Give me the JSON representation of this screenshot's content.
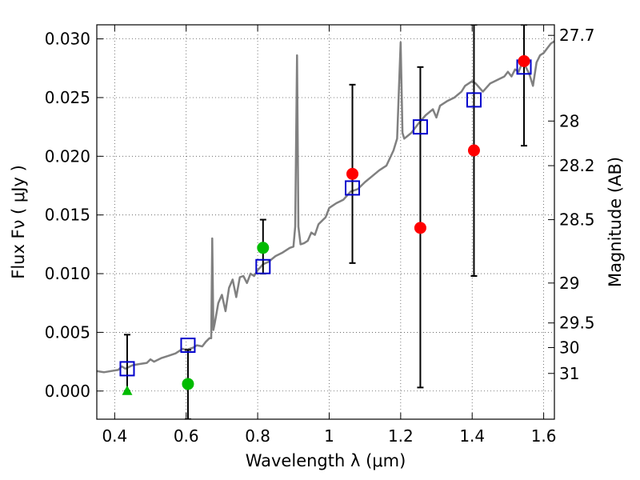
{
  "chart_data": {
    "type": "scatter",
    "xlabel": "Wavelength  λ (μm)",
    "ylabel": "Flux  Fν  ( μJy )",
    "ylabel_right": "Magnitude (AB)",
    "xlim": [
      0.35,
      1.63
    ],
    "ylim": [
      -0.0024,
      0.0312
    ],
    "grid": true,
    "x_ticks": [
      {
        "value": 0.4,
        "label": "0.4"
      },
      {
        "value": 0.6,
        "label": "0.6"
      },
      {
        "value": 0.8,
        "label": "0.8"
      },
      {
        "value": 1.0,
        "label": "1"
      },
      {
        "value": 1.2,
        "label": "1.2"
      },
      {
        "value": 1.4,
        "label": "1.4"
      },
      {
        "value": 1.6,
        "label": "1.6"
      }
    ],
    "y_ticks": [
      {
        "value": 0.0,
        "label": "0.000"
      },
      {
        "value": 0.005,
        "label": "0.005"
      },
      {
        "value": 0.01,
        "label": "0.010"
      },
      {
        "value": 0.015,
        "label": "0.015"
      },
      {
        "value": 0.02,
        "label": "0.020"
      },
      {
        "value": 0.025,
        "label": "0.025"
      },
      {
        "value": 0.03,
        "label": "0.030"
      }
    ],
    "right_ticks": [
      {
        "flux": 0.0303,
        "label": "27.7"
      },
      {
        "flux": 0.023,
        "label": "28"
      },
      {
        "flux": 0.0192,
        "label": "28.2"
      },
      {
        "flux": 0.0146,
        "label": "28.5"
      },
      {
        "flux": 0.0092,
        "label": "29"
      },
      {
        "flux": 0.0058,
        "label": "29.5"
      },
      {
        "flux": 0.0037,
        "label": "30"
      },
      {
        "flux": 0.0015,
        "label": "31"
      }
    ],
    "series": [
      {
        "style": "line",
        "color": "#808080",
        "points": [
          [
            0.35,
            0.0017
          ],
          [
            0.37,
            0.0016
          ],
          [
            0.39,
            0.0017
          ],
          [
            0.41,
            0.0018
          ],
          [
            0.42,
            0.0021
          ],
          [
            0.43,
            0.0019
          ],
          [
            0.45,
            0.0022
          ],
          [
            0.47,
            0.0023
          ],
          [
            0.49,
            0.0024
          ],
          [
            0.5,
            0.0027
          ],
          [
            0.51,
            0.0025
          ],
          [
            0.53,
            0.0028
          ],
          [
            0.55,
            0.003
          ],
          [
            0.57,
            0.0032
          ],
          [
            0.58,
            0.0034
          ],
          [
            0.59,
            0.0036
          ],
          [
            0.6,
            0.0035
          ],
          [
            0.62,
            0.0037
          ],
          [
            0.63,
            0.0039
          ],
          [
            0.645,
            0.0038
          ],
          [
            0.655,
            0.0042
          ],
          [
            0.665,
            0.0045
          ],
          [
            0.67,
            0.0045
          ],
          [
            0.673,
            0.013
          ],
          [
            0.676,
            0.0052
          ],
          [
            0.68,
            0.0058
          ],
          [
            0.69,
            0.0075
          ],
          [
            0.7,
            0.0082
          ],
          [
            0.71,
            0.0068
          ],
          [
            0.72,
            0.0088
          ],
          [
            0.73,
            0.0095
          ],
          [
            0.74,
            0.008
          ],
          [
            0.75,
            0.0097
          ],
          [
            0.76,
            0.0098
          ],
          [
            0.77,
            0.0092
          ],
          [
            0.78,
            0.01
          ],
          [
            0.79,
            0.0098
          ],
          [
            0.8,
            0.0103
          ],
          [
            0.815,
            0.0108
          ],
          [
            0.83,
            0.011
          ],
          [
            0.85,
            0.0115
          ],
          [
            0.87,
            0.0118
          ],
          [
            0.89,
            0.0122
          ],
          [
            0.9,
            0.0123
          ],
          [
            0.905,
            0.014
          ],
          [
            0.91,
            0.0286
          ],
          [
            0.914,
            0.014
          ],
          [
            0.92,
            0.0125
          ],
          [
            0.93,
            0.0126
          ],
          [
            0.94,
            0.0128
          ],
          [
            0.95,
            0.0135
          ],
          [
            0.96,
            0.0133
          ],
          [
            0.97,
            0.0142
          ],
          [
            0.98,
            0.0145
          ],
          [
            0.99,
            0.0148
          ],
          [
            1.0,
            0.0156
          ],
          [
            1.02,
            0.016
          ],
          [
            1.04,
            0.0163
          ],
          [
            1.06,
            0.017
          ],
          [
            1.08,
            0.0172
          ],
          [
            1.1,
            0.0178
          ],
          [
            1.12,
            0.0183
          ],
          [
            1.14,
            0.0188
          ],
          [
            1.16,
            0.0192
          ],
          [
            1.18,
            0.0205
          ],
          [
            1.19,
            0.0215
          ],
          [
            1.2,
            0.0297
          ],
          [
            1.205,
            0.022
          ],
          [
            1.21,
            0.0215
          ],
          [
            1.23,
            0.022
          ],
          [
            1.25,
            0.0228
          ],
          [
            1.27,
            0.0235
          ],
          [
            1.29,
            0.024
          ],
          [
            1.3,
            0.0233
          ],
          [
            1.31,
            0.0243
          ],
          [
            1.33,
            0.0247
          ],
          [
            1.35,
            0.025
          ],
          [
            1.37,
            0.0255
          ],
          [
            1.38,
            0.026
          ],
          [
            1.4,
            0.0264
          ],
          [
            1.41,
            0.0262
          ],
          [
            1.43,
            0.0255
          ],
          [
            1.45,
            0.0262
          ],
          [
            1.47,
            0.0265
          ],
          [
            1.49,
            0.0268
          ],
          [
            1.5,
            0.0272
          ],
          [
            1.51,
            0.0268
          ],
          [
            1.52,
            0.0274
          ],
          [
            1.53,
            0.0272
          ],
          [
            1.54,
            0.028
          ],
          [
            1.55,
            0.0276
          ],
          [
            1.56,
            0.027
          ],
          [
            1.57,
            0.026
          ],
          [
            1.58,
            0.028
          ],
          [
            1.59,
            0.0286
          ],
          [
            1.6,
            0.0288
          ],
          [
            1.61,
            0.0292
          ],
          [
            1.62,
            0.0296
          ],
          [
            1.63,
            0.0298
          ]
        ]
      },
      {
        "style": "open-square",
        "color": "#0000cc",
        "points": [
          [
            0.435,
            0.0019
          ],
          [
            0.605,
            0.0039
          ],
          [
            0.815,
            0.0106
          ],
          [
            1.065,
            0.0173
          ],
          [
            1.255,
            0.0225
          ],
          [
            1.405,
            0.0248
          ],
          [
            1.545,
            0.0276
          ]
        ]
      },
      {
        "style": "filled-circle",
        "color": "#00bb00",
        "points": [
          [
            0.605,
            0.0006
          ],
          [
            0.815,
            0.0122
          ]
        ]
      },
      {
        "style": "filled-triangle",
        "color": "#00bb00",
        "points": [
          [
            0.435,
            0.0
          ]
        ]
      },
      {
        "style": "filled-circle",
        "color": "#ff0000",
        "points": [
          [
            1.065,
            0.0185
          ],
          [
            1.255,
            0.0139
          ],
          [
            1.405,
            0.0205
          ],
          [
            1.545,
            0.0281
          ]
        ]
      }
    ],
    "error_bars": [
      {
        "x": 0.435,
        "y_low": 0.0,
        "y_high": 0.0048
      },
      {
        "x": 0.605,
        "y_low": -0.0024,
        "y_high": 0.0035
      },
      {
        "x": 0.815,
        "y_low": 0.01,
        "y_high": 0.0146
      },
      {
        "x": 1.065,
        "y_low": 0.0109,
        "y_high": 0.0261
      },
      {
        "x": 1.255,
        "y_low": 0.0003,
        "y_high": 0.0276
      },
      {
        "x": 1.405,
        "y_low": 0.0098,
        "y_high": 0.0312
      },
      {
        "x": 1.545,
        "y_low": 0.0209,
        "y_high": 0.0312
      }
    ]
  }
}
